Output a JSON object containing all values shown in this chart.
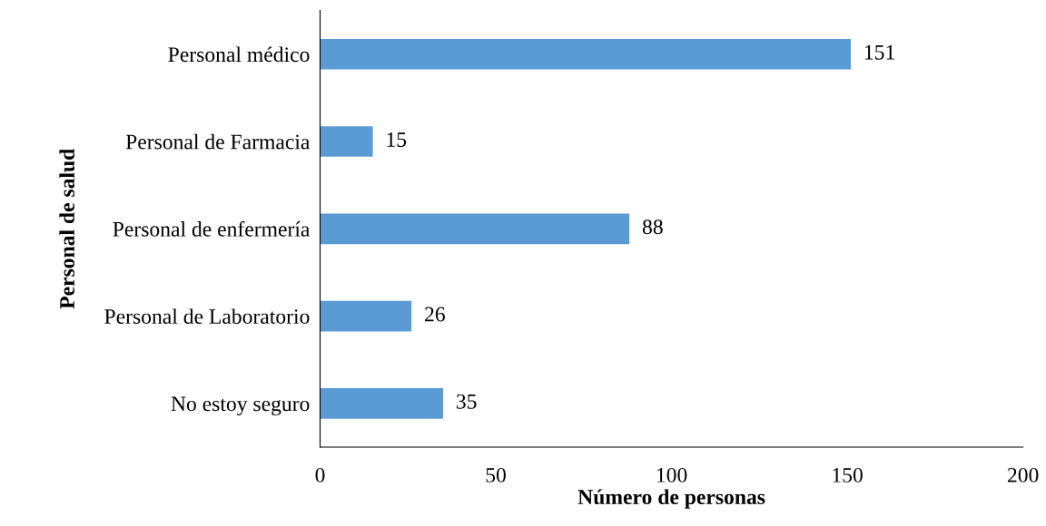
{
  "chart_data": {
    "type": "bar",
    "orientation": "horizontal",
    "xlabel": "Número de personas",
    "ylabel": "Personal de salud",
    "categories": [
      "Personal médico",
      "Personal de Farmacia",
      "Personal de enfermería",
      "Personal de Laboratorio",
      "No estoy seguro"
    ],
    "values": [
      151,
      15,
      88,
      26,
      35
    ],
    "color": "#5b9bd5",
    "xlim": [
      0,
      200
    ],
    "xticks": [
      0,
      50,
      100,
      150,
      200
    ],
    "grid": false,
    "data_labels": true
  }
}
